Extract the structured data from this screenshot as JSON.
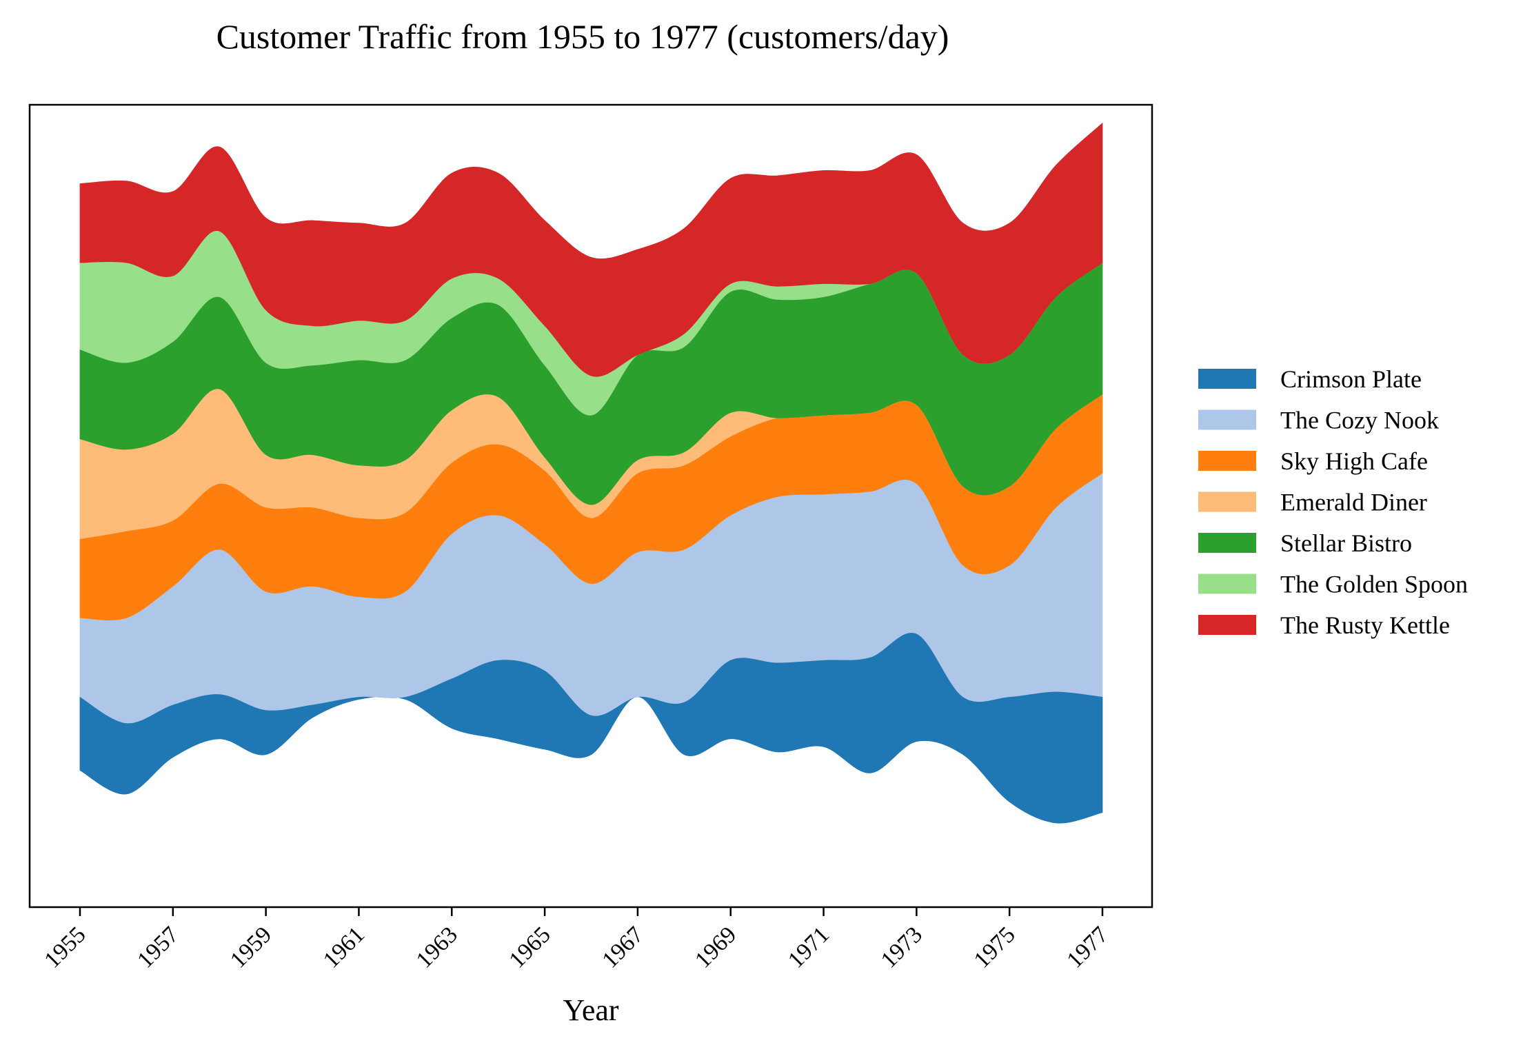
{
  "chart_data": {
    "type": "area",
    "subtype": "streamgraph",
    "title": "Customer Traffic from 1955 to 1977 (customers/day)",
    "xlabel": "Year",
    "ylabel": "",
    "x": [
      1955,
      1956,
      1957,
      1958,
      1959,
      1960,
      1961,
      1962,
      1963,
      1964,
      1965,
      1966,
      1967,
      1968,
      1969,
      1970,
      1971,
      1972,
      1973,
      1974,
      1975,
      1976,
      1977
    ],
    "x_tick_labels": [
      "1955",
      "1957",
      "1959",
      "1961",
      "1963",
      "1965",
      "1967",
      "1969",
      "1971",
      "1973",
      "1975",
      "1977"
    ],
    "baseline": [
      -28,
      -37,
      -23,
      -16,
      -22,
      -8,
      -1,
      -1,
      -12,
      -16,
      -20,
      -22,
      0,
      -22,
      -16,
      -21,
      -19,
      -29,
      -17,
      -22,
      -40,
      -48,
      -44
    ],
    "series": [
      {
        "name": "Crimson Plate",
        "color": "#1f77b4",
        "values": [
          28,
          27,
          20,
          17,
          17,
          5,
          1,
          1,
          19,
          30,
          30,
          15,
          0,
          20,
          30,
          34,
          33,
          44,
          41,
          22,
          40,
          50,
          44
        ]
      },
      {
        "name": "The Cozy Nook",
        "color": "#aec7e8",
        "values": [
          30,
          40,
          45,
          55,
          45,
          45,
          38,
          40,
          55,
          55,
          48,
          50,
          55,
          58,
          55,
          63,
          63,
          63,
          57,
          50,
          50,
          70,
          85
        ]
      },
      {
        "name": "Sky High Cafe",
        "color": "#ff7f0e",
        "values": [
          30,
          33,
          25,
          25,
          32,
          30,
          30,
          30,
          27,
          27,
          28,
          25,
          30,
          32,
          30,
          30,
          30,
          30,
          30,
          30,
          30,
          30,
          30
        ]
      },
      {
        "name": "Emerald Diner",
        "color": "#ffbb78",
        "values": [
          38,
          31,
          33,
          36,
          20,
          20,
          20,
          20,
          20,
          18,
          5,
          5,
          5,
          5,
          9,
          0,
          0,
          0,
          0,
          0,
          0,
          0,
          0
        ]
      },
      {
        "name": "Stellar Bistro",
        "color": "#2ca02c",
        "values": [
          34,
          33,
          35,
          35,
          35,
          34,
          40,
          38,
          35,
          35,
          35,
          34,
          40,
          40,
          46,
          45,
          45,
          49,
          50,
          50,
          50,
          50,
          50
        ]
      },
      {
        "name": "The Golden Spoon",
        "color": "#98df8a",
        "values": [
          33,
          38,
          25,
          25,
          20,
          15,
          15,
          15,
          15,
          10,
          15,
          15,
          0,
          5,
          3,
          5,
          5,
          0,
          0,
          0,
          0,
          0,
          0
        ]
      },
      {
        "name": "The Rusty Kettle",
        "color": "#d62728",
        "values": [
          30,
          31,
          32,
          32,
          35,
          40,
          37,
          37,
          40,
          40,
          40,
          45,
          40,
          40,
          40,
          42,
          43,
          43,
          45,
          50,
          50,
          50,
          53
        ]
      }
    ],
    "legend_position": "right",
    "grid": false,
    "ylim": [
      -80,
      225
    ]
  }
}
